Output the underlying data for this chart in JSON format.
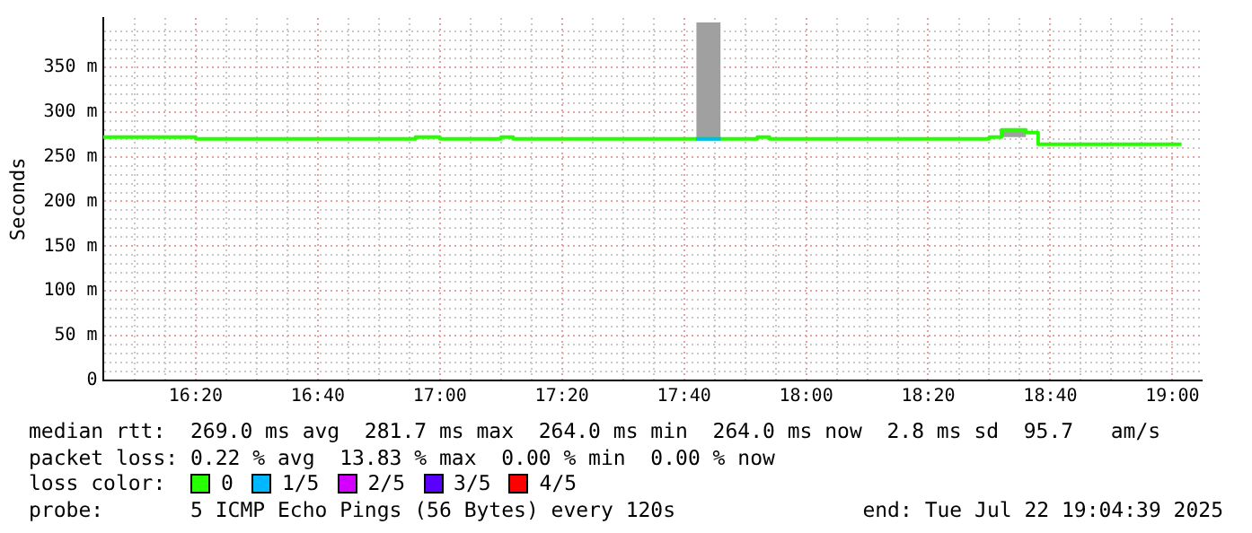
{
  "chart_data": {
    "type": "step",
    "ylabel": "Seconds",
    "xlim": [
      16.08,
      19.08
    ],
    "ylim": [
      0,
      405
    ],
    "xticks": [
      {
        "value": 16.1667,
        "label": null
      },
      {
        "value": 16.25,
        "label": null
      },
      {
        "value": 16.3333,
        "label": "16:20"
      },
      {
        "value": 16.4167,
        "label": null
      },
      {
        "value": 16.5,
        "label": null
      },
      {
        "value": 16.5833,
        "label": null
      },
      {
        "value": 16.6667,
        "label": "16:40"
      },
      {
        "value": 16.75,
        "label": null
      },
      {
        "value": 16.8333,
        "label": null
      },
      {
        "value": 16.9167,
        "label": null
      },
      {
        "value": 17,
        "label": "17:00"
      },
      {
        "value": 17.0833,
        "label": null
      },
      {
        "value": 17.1667,
        "label": null
      },
      {
        "value": 17.25,
        "label": null
      },
      {
        "value": 17.3333,
        "label": "17:20"
      },
      {
        "value": 17.4167,
        "label": null
      },
      {
        "value": 17.5,
        "label": null
      },
      {
        "value": 17.5833,
        "label": null
      },
      {
        "value": 17.6667,
        "label": "17:40"
      },
      {
        "value": 17.75,
        "label": null
      },
      {
        "value": 17.8333,
        "label": null
      },
      {
        "value": 17.9167,
        "label": null
      },
      {
        "value": 18,
        "label": "18:00"
      },
      {
        "value": 18.0833,
        "label": null
      },
      {
        "value": 18.1667,
        "label": null
      },
      {
        "value": 18.25,
        "label": null
      },
      {
        "value": 18.3333,
        "label": "18:20"
      },
      {
        "value": 18.4167,
        "label": null
      },
      {
        "value": 18.5,
        "label": null
      },
      {
        "value": 18.5833,
        "label": null
      },
      {
        "value": 18.6667,
        "label": "18:40"
      },
      {
        "value": 18.75,
        "label": null
      },
      {
        "value": 18.8333,
        "label": null
      },
      {
        "value": 18.9167,
        "label": null
      },
      {
        "value": 19,
        "label": "19:00"
      }
    ],
    "yticks": [
      0,
      {
        "value": 10,
        "label": null
      },
      {
        "value": 20,
        "label": null
      },
      {
        "value": 30,
        "label": null
      },
      {
        "value": 40,
        "label": null
      },
      {
        "value": 50,
        "label": "50 m"
      },
      {
        "value": 60,
        "label": null
      },
      {
        "value": 70,
        "label": null
      },
      {
        "value": 80,
        "label": null
      },
      {
        "value": 90,
        "label": null
      },
      {
        "value": 100,
        "label": "100 m"
      },
      {
        "value": 110,
        "label": null
      },
      {
        "value": 120,
        "label": null
      },
      {
        "value": 130,
        "label": null
      },
      {
        "value": 140,
        "label": null
      },
      {
        "value": 150,
        "label": "150 m"
      },
      {
        "value": 160,
        "label": null
      },
      {
        "value": 170,
        "label": null
      },
      {
        "value": 180,
        "label": null
      },
      {
        "value": 190,
        "label": null
      },
      {
        "value": 200,
        "label": "200 m"
      },
      {
        "value": 210,
        "label": null
      },
      {
        "value": 220,
        "label": null
      },
      {
        "value": 230,
        "label": null
      },
      {
        "value": 240,
        "label": null
      },
      {
        "value": 250,
        "label": "250 m"
      },
      {
        "value": 260,
        "label": null
      },
      {
        "value": 270,
        "label": null
      },
      {
        "value": 280,
        "label": null
      },
      {
        "value": 290,
        "label": null
      },
      {
        "value": 300,
        "label": "300 m"
      },
      {
        "value": 310,
        "label": null
      },
      {
        "value": 320,
        "label": null
      },
      {
        "value": 330,
        "label": null
      },
      {
        "value": 340,
        "label": null
      },
      {
        "value": 350,
        "label": "350 m"
      },
      {
        "value": 360,
        "label": null
      },
      {
        "value": 370,
        "label": null
      },
      {
        "value": 380,
        "label": null
      },
      {
        "value": 390,
        "label": null
      }
    ],
    "grid": true,
    "marker": "none",
    "legend": "bottom",
    "legend_title": "loss color:",
    "series": [
      {
        "name": "0",
        "color": "#26ff00",
        "x": [
          16.08,
          16.3333,
          16.9333,
          17.0,
          17.1667,
          17.2,
          17.7,
          17.7667,
          17.8667,
          17.9,
          18.5,
          18.5333,
          18.6,
          18.6333,
          19.025
        ],
        "values": [
          272,
          270,
          272,
          270,
          272,
          270,
          270,
          270,
          272,
          270,
          272,
          280,
          277,
          264,
          264
        ],
        "lower": [
          272,
          270,
          272,
          270,
          272,
          270,
          270,
          270,
          272,
          270,
          272,
          272,
          277,
          264,
          264
        ],
        "upper": [
          272,
          270,
          272,
          270,
          272,
          270,
          270,
          270,
          272,
          270,
          272,
          280,
          277,
          264,
          264
        ]
      },
      {
        "name": "1/5",
        "color": "#00b8ff",
        "x": [
          17.7,
          17.7667
        ],
        "values": [
          270,
          270
        ],
        "lower": [
          270,
          270
        ],
        "upper": [
          400,
          400
        ]
      },
      {
        "name": "2/5",
        "color": "#d400ff"
      },
      {
        "name": "3/5",
        "color": "#5a00ff"
      },
      {
        "name": "4/5",
        "color": "#ff0000"
      }
    ],
    "annotations": [
      "median rtt:  269.0 ms avg  281.7 ms max  264.0 ms min  264.0 ms now  2.8 ms sd  95.7   am/s",
      "packet loss: 0.22 % avg  13.83 % max  0.00 % min  0.00 % now",
      "probe:       5 ICMP Echo Pings (56 Bytes) every 120s",
      "end: Tue Jul 22 19:04:39 2025"
    ]
  }
}
